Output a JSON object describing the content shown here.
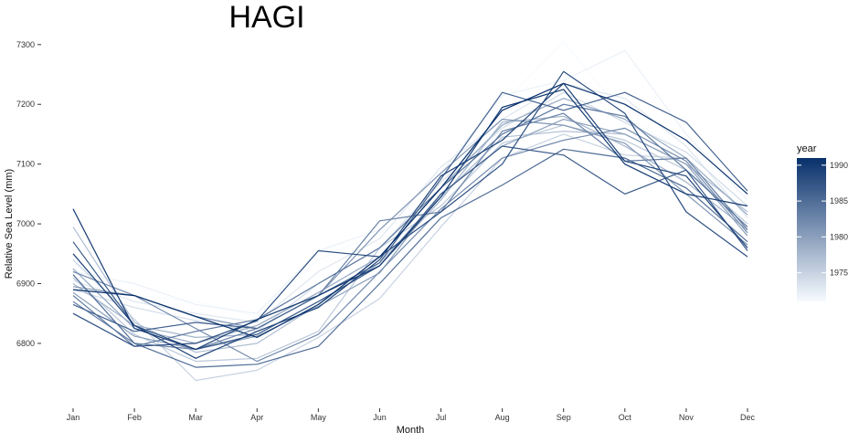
{
  "chart_data": {
    "type": "line",
    "title": "HAGI",
    "xlabel": "Month",
    "ylabel": "Relative Sea Level (mm)",
    "categories": [
      "Jan",
      "Feb",
      "Mar",
      "Apr",
      "May",
      "Jun",
      "Jul",
      "Aug",
      "Sep",
      "Oct",
      "Nov",
      "Dec"
    ],
    "yticks": [
      6800,
      6900,
      7000,
      7100,
      7200,
      7300
    ],
    "ylim": [
      6725,
      7315
    ],
    "grid": false,
    "legend": {
      "title": "year",
      "position": "right",
      "ticks": [
        1975,
        1980,
        1985,
        1990
      ],
      "range": [
        1971,
        1991
      ],
      "color_low": "#f7fbff",
      "color_high": "#08306b"
    },
    "series": [
      {
        "year": 1971,
        "values": [
          6935,
          6880,
          6870,
          6845,
          6940,
          6985,
          7050,
          7200,
          7305,
          7180,
          7120,
          7060
        ]
      },
      {
        "year": 1972,
        "values": [
          6920,
          6900,
          6865,
          6850,
          6955,
          6990,
          7085,
          7215,
          7240,
          7290,
          7150,
          7040
        ]
      },
      {
        "year": 1973,
        "values": [
          6905,
          6870,
          6850,
          6835,
          6920,
          6975,
          7095,
          7175,
          7235,
          7210,
          7130,
          7010
        ]
      },
      {
        "year": 1974,
        "values": [
          6890,
          6860,
          6838,
          6820,
          6900,
          6960,
          7070,
          7160,
          7220,
          7170,
          7120,
          7030
        ]
      },
      {
        "year": 1975,
        "values": [
          6940,
          6840,
          6738,
          6755,
          6810,
          6875,
          6995,
          7110,
          7150,
          7115,
          7110,
          6990
        ]
      },
      {
        "year": 1976,
        "values": [
          6910,
          6815,
          6770,
          6775,
          6820,
          6960,
          7030,
          7135,
          7165,
          7140,
          7090,
          7000
        ]
      },
      {
        "year": 1977,
        "values": [
          6995,
          6835,
          6785,
          6800,
          6865,
          6935,
          7045,
          7145,
          7155,
          7150,
          7100,
          7020
        ]
      },
      {
        "year": 1978,
        "values": [
          6900,
          6830,
          6810,
          6815,
          6870,
          6930,
          7040,
          7170,
          7180,
          7130,
          7070,
          6990
        ]
      },
      {
        "year": 1979,
        "values": [
          6925,
          6825,
          6800,
          6830,
          6885,
          6945,
          7060,
          7165,
          7210,
          7175,
          7110,
          7015
        ]
      },
      {
        "year": 1980,
        "values": [
          6885,
          6812,
          6790,
          6812,
          6862,
          6918,
          7050,
          7130,
          7175,
          7150,
          7100,
          6980
        ]
      },
      {
        "year": 1981,
        "values": [
          6895,
          6880,
          6845,
          6825,
          6880,
          6990,
          7085,
          7175,
          7165,
          7135,
          7050,
          6965
        ]
      },
      {
        "year": 1982,
        "values": [
          6920,
          6880,
          6825,
          6770,
          6815,
          6920,
          7025,
          7110,
          7140,
          7160,
          7105,
          6985
        ]
      },
      {
        "year": 1983,
        "values": [
          6870,
          6800,
          6790,
          6825,
          6880,
          7005,
          7020,
          7155,
          7185,
          7105,
          7110,
          6990
        ]
      },
      {
        "year": 1984,
        "values": [
          6880,
          6795,
          6820,
          6840,
          6900,
          6960,
          7060,
          7150,
          7200,
          7180,
          7090,
          6995
        ]
      },
      {
        "year": 1985,
        "values": [
          6915,
          6800,
          6760,
          6765,
          6795,
          6900,
          7010,
          7065,
          7125,
          7110,
          7060,
          6970
        ]
      },
      {
        "year": 1986,
        "values": [
          6865,
          6820,
          6835,
          6825,
          6880,
          6935,
          7075,
          7220,
          7190,
          7220,
          7170,
          7055
        ]
      },
      {
        "year": 1987,
        "values": [
          6970,
          6830,
          6790,
          6815,
          6870,
          6930,
          7050,
          7130,
          7115,
          7050,
          7090,
          6955
        ]
      },
      {
        "year": 1988,
        "values": [
          6850,
          6795,
          6800,
          6838,
          6955,
          6945,
          7020,
          7100,
          7255,
          7185,
          7020,
          6945
        ]
      },
      {
        "year": 1989,
        "values": [
          6950,
          6830,
          6775,
          6820,
          6860,
          6940,
          7080,
          7140,
          7235,
          7105,
          7080,
          6960
        ]
      },
      {
        "year": 1990,
        "values": [
          7025,
          6825,
          6790,
          6840,
          6880,
          6930,
          7045,
          7195,
          7225,
          7100,
          7050,
          7030
        ]
      },
      {
        "year": 1991,
        "values": [
          6890,
          6880,
          6845,
          6810,
          6865,
          6945,
          7060,
          7190,
          7235,
          7200,
          7140,
          7050
        ]
      }
    ]
  }
}
